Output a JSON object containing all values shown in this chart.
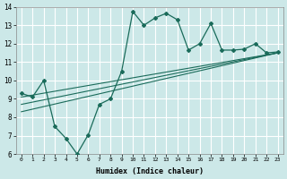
{
  "xlabel": "Humidex (Indice chaleur)",
  "bg_color": "#cce8e8",
  "line_color": "#1a6b5a",
  "grid_color": "#ffffff",
  "xlim": [
    -0.5,
    23.5
  ],
  "ylim": [
    6,
    14
  ],
  "xticks": [
    0,
    1,
    2,
    3,
    4,
    5,
    6,
    7,
    8,
    9,
    10,
    11,
    12,
    13,
    14,
    15,
    16,
    17,
    18,
    19,
    20,
    21,
    22,
    23
  ],
  "yticks": [
    6,
    7,
    8,
    9,
    10,
    11,
    12,
    13,
    14
  ],
  "main_x": [
    0,
    1,
    2,
    3,
    4,
    5,
    6,
    7,
    8,
    9,
    10,
    11,
    12,
    13,
    14,
    15,
    16,
    17,
    18,
    19,
    20,
    21,
    22,
    23
  ],
  "main_y": [
    9.3,
    9.1,
    10.0,
    7.5,
    6.85,
    6.0,
    7.05,
    8.7,
    9.0,
    10.5,
    13.75,
    13.0,
    13.4,
    13.65,
    13.3,
    11.65,
    12.0,
    13.1,
    11.65,
    11.65,
    11.7,
    12.0,
    11.5,
    11.55
  ],
  "trend1_x": [
    0,
    23
  ],
  "trend1_y": [
    8.3,
    11.5
  ],
  "trend2_x": [
    0,
    23
  ],
  "trend2_y": [
    8.7,
    11.5
  ],
  "trend3_x": [
    0,
    23
  ],
  "trend3_y": [
    9.1,
    11.5
  ]
}
